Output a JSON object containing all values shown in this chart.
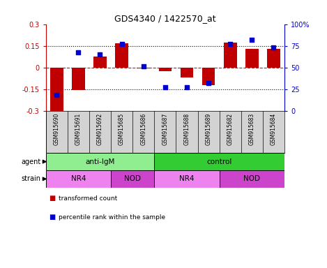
{
  "title": "GDS4340 / 1422570_at",
  "samples": [
    "GSM915690",
    "GSM915691",
    "GSM915692",
    "GSM915685",
    "GSM915686",
    "GSM915687",
    "GSM915688",
    "GSM915689",
    "GSM915682",
    "GSM915683",
    "GSM915684"
  ],
  "bar_values": [
    -0.3,
    -0.155,
    0.075,
    0.168,
    -0.005,
    -0.025,
    -0.07,
    -0.125,
    0.17,
    0.13,
    0.13
  ],
  "percentile_values": [
    18,
    67,
    65,
    77,
    51,
    27,
    27,
    32,
    77,
    82,
    73
  ],
  "bar_color": "#C00000",
  "dot_color": "#0000CC",
  "ylim_left": [
    -0.3,
    0.3
  ],
  "ylim_right": [
    0,
    100
  ],
  "yticks_left": [
    -0.3,
    -0.15,
    0.0,
    0.15,
    0.3
  ],
  "ytick_labels_left": [
    "-0.3",
    "-0.15",
    "0",
    "0.15",
    "0.3"
  ],
  "yticks_right": [
    0,
    25,
    50,
    75,
    100
  ],
  "ytick_labels_right": [
    "0",
    "25",
    "50",
    "75",
    "100%"
  ],
  "hlines": [
    -0.15,
    0.0,
    0.15
  ],
  "hline_styles": [
    "dotted",
    "dashed",
    "dotted"
  ],
  "hline_colors": [
    "black",
    "red",
    "black"
  ],
  "agent_groups": [
    {
      "label": "anti-IgM",
      "start": 0,
      "end": 5,
      "color": "#90EE90"
    },
    {
      "label": "control",
      "start": 5,
      "end": 11,
      "color": "#33CC33"
    }
  ],
  "strain_groups": [
    {
      "label": "NR4",
      "start": 0,
      "end": 3,
      "color": "#EE82EE"
    },
    {
      "label": "NOD",
      "start": 3,
      "end": 5,
      "color": "#CC44CC"
    },
    {
      "label": "NR4",
      "start": 5,
      "end": 8,
      "color": "#EE82EE"
    },
    {
      "label": "NOD",
      "start": 8,
      "end": 11,
      "color": "#CC44CC"
    }
  ],
  "legend_items": [
    {
      "label": "transformed count",
      "color": "#C00000"
    },
    {
      "label": "percentile rank within the sample",
      "color": "#0000CC"
    }
  ],
  "agent_label": "agent",
  "strain_label": "strain",
  "sample_bg_color": "#D3D3D3",
  "plot_bg": "#FFFFFF"
}
